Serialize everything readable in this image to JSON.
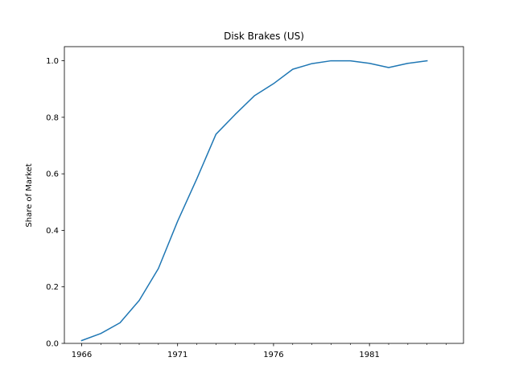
{
  "chart_data": {
    "type": "line",
    "title": "Disk Brakes (US)",
    "xlabel": "",
    "ylabel": "Share of Market",
    "xlim": [
      1965.1,
      1985.9
    ],
    "ylim": [
      0.0,
      1.05
    ],
    "x_major_ticks": [
      1966,
      1971,
      1976,
      1981
    ],
    "x_minor_ticks": [
      1967,
      1968,
      1969,
      1970,
      1972,
      1973,
      1974,
      1975,
      1977,
      1978,
      1979,
      1980,
      1982,
      1983,
      1984,
      1985
    ],
    "y_ticks": [
      0.0,
      0.2,
      0.4,
      0.6,
      0.8,
      1.0
    ],
    "y_tick_labels": [
      "0.0",
      "0.2",
      "0.4",
      "0.6",
      "0.8",
      "1.0"
    ],
    "x_tick_labels": [
      "1966",
      "1971",
      "1976",
      "1981"
    ],
    "grid": false,
    "color": "#1f77b4",
    "series": [
      {
        "name": "",
        "x": [
          1966,
          1967,
          1968,
          1969,
          1970,
          1971,
          1972,
          1973,
          1974,
          1975,
          1976,
          1977,
          1978,
          1979,
          1980,
          1981,
          1982,
          1983,
          1984
        ],
        "y": [
          0.01,
          0.035,
          0.073,
          0.152,
          0.265,
          0.432,
          0.582,
          0.74,
          0.81,
          0.876,
          0.919,
          0.97,
          0.99,
          1.0,
          1.0,
          0.991,
          0.976,
          0.991,
          1.0
        ]
      }
    ]
  }
}
